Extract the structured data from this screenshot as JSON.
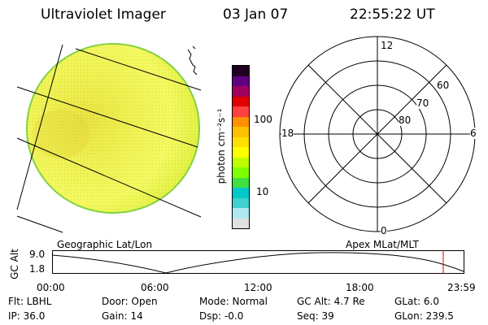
{
  "header": {
    "title": "Ultraviolet Imager",
    "date": "03 Jan 07",
    "time": "22:55:22 UT"
  },
  "colorbar": {
    "unit_label": "photon cm⁻²s⁻¹",
    "tick_100": "100",
    "tick_10": "10",
    "colors": [
      "#e0e0e0",
      "#b0e8f0",
      "#40d0d0",
      "#00c8c8",
      "#40e040",
      "#80ff00",
      "#c0ff00",
      "#ffff00",
      "#ffe000",
      "#ffc000",
      "#ff9000",
      "#ff4040",
      "#e00000",
      "#a00060",
      "#600080",
      "#200020"
    ]
  },
  "polar": {
    "lat_labels": [
      "60",
      "70",
      "80"
    ],
    "mlt_labels": {
      "top": "12",
      "right": "6",
      "bottom": "0",
      "left": "18"
    }
  },
  "labels": {
    "geo": "Geographic Lat/Lon",
    "apex": "Apex  MLat/MLT"
  },
  "timeline": {
    "axis_label": "GC Alt",
    "y_max": "9.0",
    "y_min": "1.8",
    "ticks": [
      "00:00",
      "06:00",
      "12:00",
      "18:00",
      "23:59"
    ],
    "marker_color": "#e00000"
  },
  "info": {
    "row1": [
      "Flt: LBHL",
      "Door: Open",
      "Mode: Normal",
      "GC Alt: 4.7 Re",
      "GLat:  6.0"
    ],
    "row2": [
      "IP: 36.0",
      "Gain: 14",
      "Dsp:  -0.0",
      "Seq: 39",
      "GLon: 239.5"
    ]
  }
}
